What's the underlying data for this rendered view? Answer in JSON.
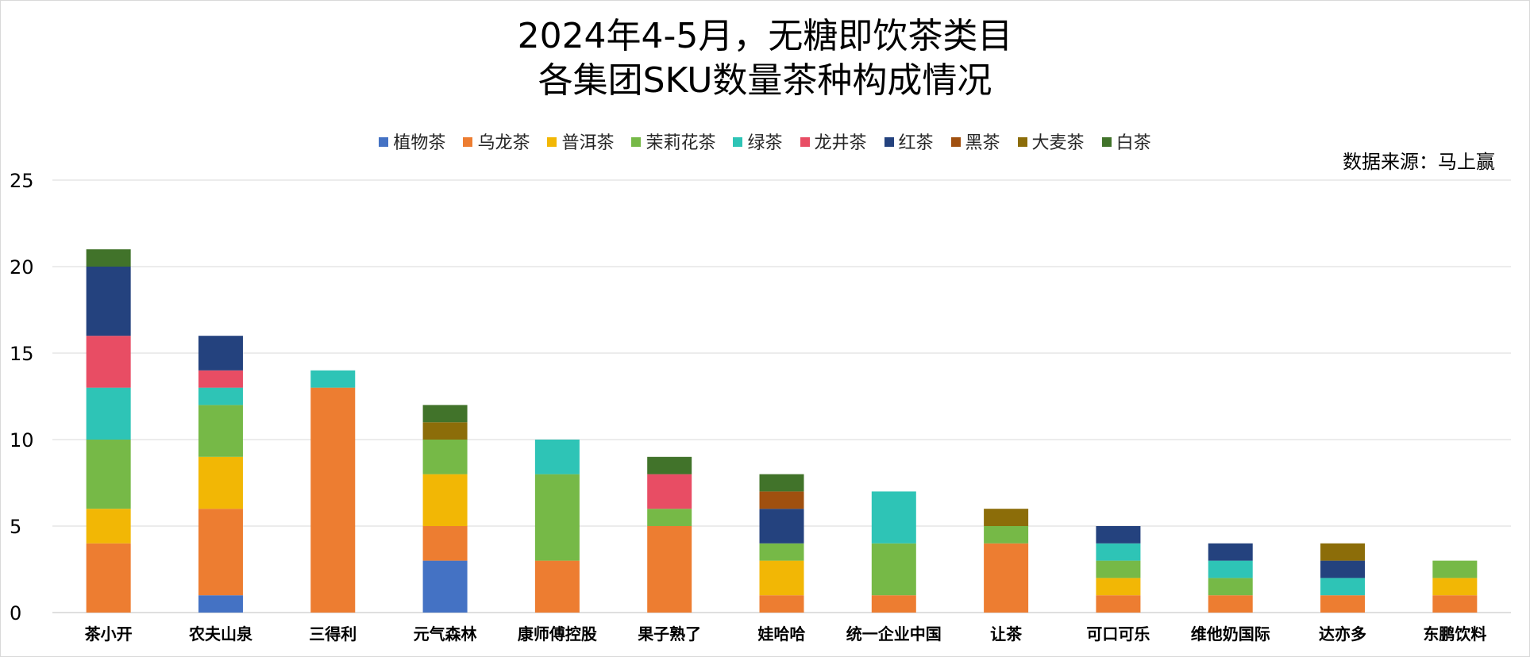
{
  "title": [
    "2024年4-5月，无糖即饮茶类目",
    "各集团SKU数量茶种构成情况"
  ],
  "source_note": "数据来源：马上赢",
  "chart_data": {
    "type": "bar",
    "stacked": true,
    "title": "2024年4-5月，无糖即饮茶类目 各集团SKU数量茶种构成情况",
    "xlabel": "",
    "ylabel": "",
    "ylim": [
      0,
      25
    ],
    "yticks": [
      0,
      5,
      10,
      15,
      20,
      25
    ],
    "grid": true,
    "legend_position": "top",
    "categories": [
      "茶小开",
      "农夫山泉",
      "三得利",
      "元气森林",
      "康师傅控股",
      "果子熟了",
      "娃哈哈",
      "统一企业中国",
      "让茶",
      "可口可乐",
      "维他奶国际",
      "达亦多",
      "东鹏饮料"
    ],
    "series": [
      {
        "name": "植物茶",
        "color": "#4472c4",
        "values": [
          0,
          1,
          0,
          3,
          0,
          0,
          0,
          0,
          0,
          0,
          0,
          0,
          0
        ]
      },
      {
        "name": "乌龙茶",
        "color": "#ed7d31",
        "values": [
          4,
          5,
          13,
          2,
          3,
          5,
          1,
          1,
          4,
          1,
          1,
          1,
          1
        ]
      },
      {
        "name": "普洱茶",
        "color": "#f2b705",
        "values": [
          2,
          3,
          0,
          3,
          0,
          0,
          2,
          0,
          0,
          1,
          0,
          0,
          1
        ]
      },
      {
        "name": "茉莉花茶",
        "color": "#76b947",
        "values": [
          4,
          3,
          0,
          2,
          5,
          1,
          1,
          3,
          1,
          1,
          1,
          0,
          1
        ]
      },
      {
        "name": "绿茶",
        "color": "#2ec4b6",
        "values": [
          3,
          1,
          1,
          0,
          2,
          0,
          0,
          3,
          0,
          1,
          1,
          1,
          0
        ]
      },
      {
        "name": "龙井茶",
        "color": "#e84d64",
        "values": [
          3,
          1,
          0,
          0,
          0,
          2,
          0,
          0,
          0,
          0,
          0,
          0,
          0
        ]
      },
      {
        "name": "红茶",
        "color": "#24427e",
        "values": [
          4,
          2,
          0,
          0,
          0,
          0,
          2,
          0,
          0,
          1,
          1,
          1,
          0
        ]
      },
      {
        "name": "黑茶",
        "color": "#a0500f",
        "values": [
          0,
          0,
          0,
          0,
          0,
          0,
          1,
          0,
          0,
          0,
          0,
          0,
          0
        ]
      },
      {
        "name": "大麦茶",
        "color": "#8c6d09",
        "values": [
          0,
          0,
          0,
          1,
          0,
          0,
          0,
          0,
          1,
          0,
          0,
          1,
          0
        ]
      },
      {
        "name": "白茶",
        "color": "#41732a",
        "values": [
          1,
          0,
          0,
          1,
          0,
          1,
          1,
          0,
          0,
          0,
          0,
          0,
          0
        ]
      }
    ]
  }
}
